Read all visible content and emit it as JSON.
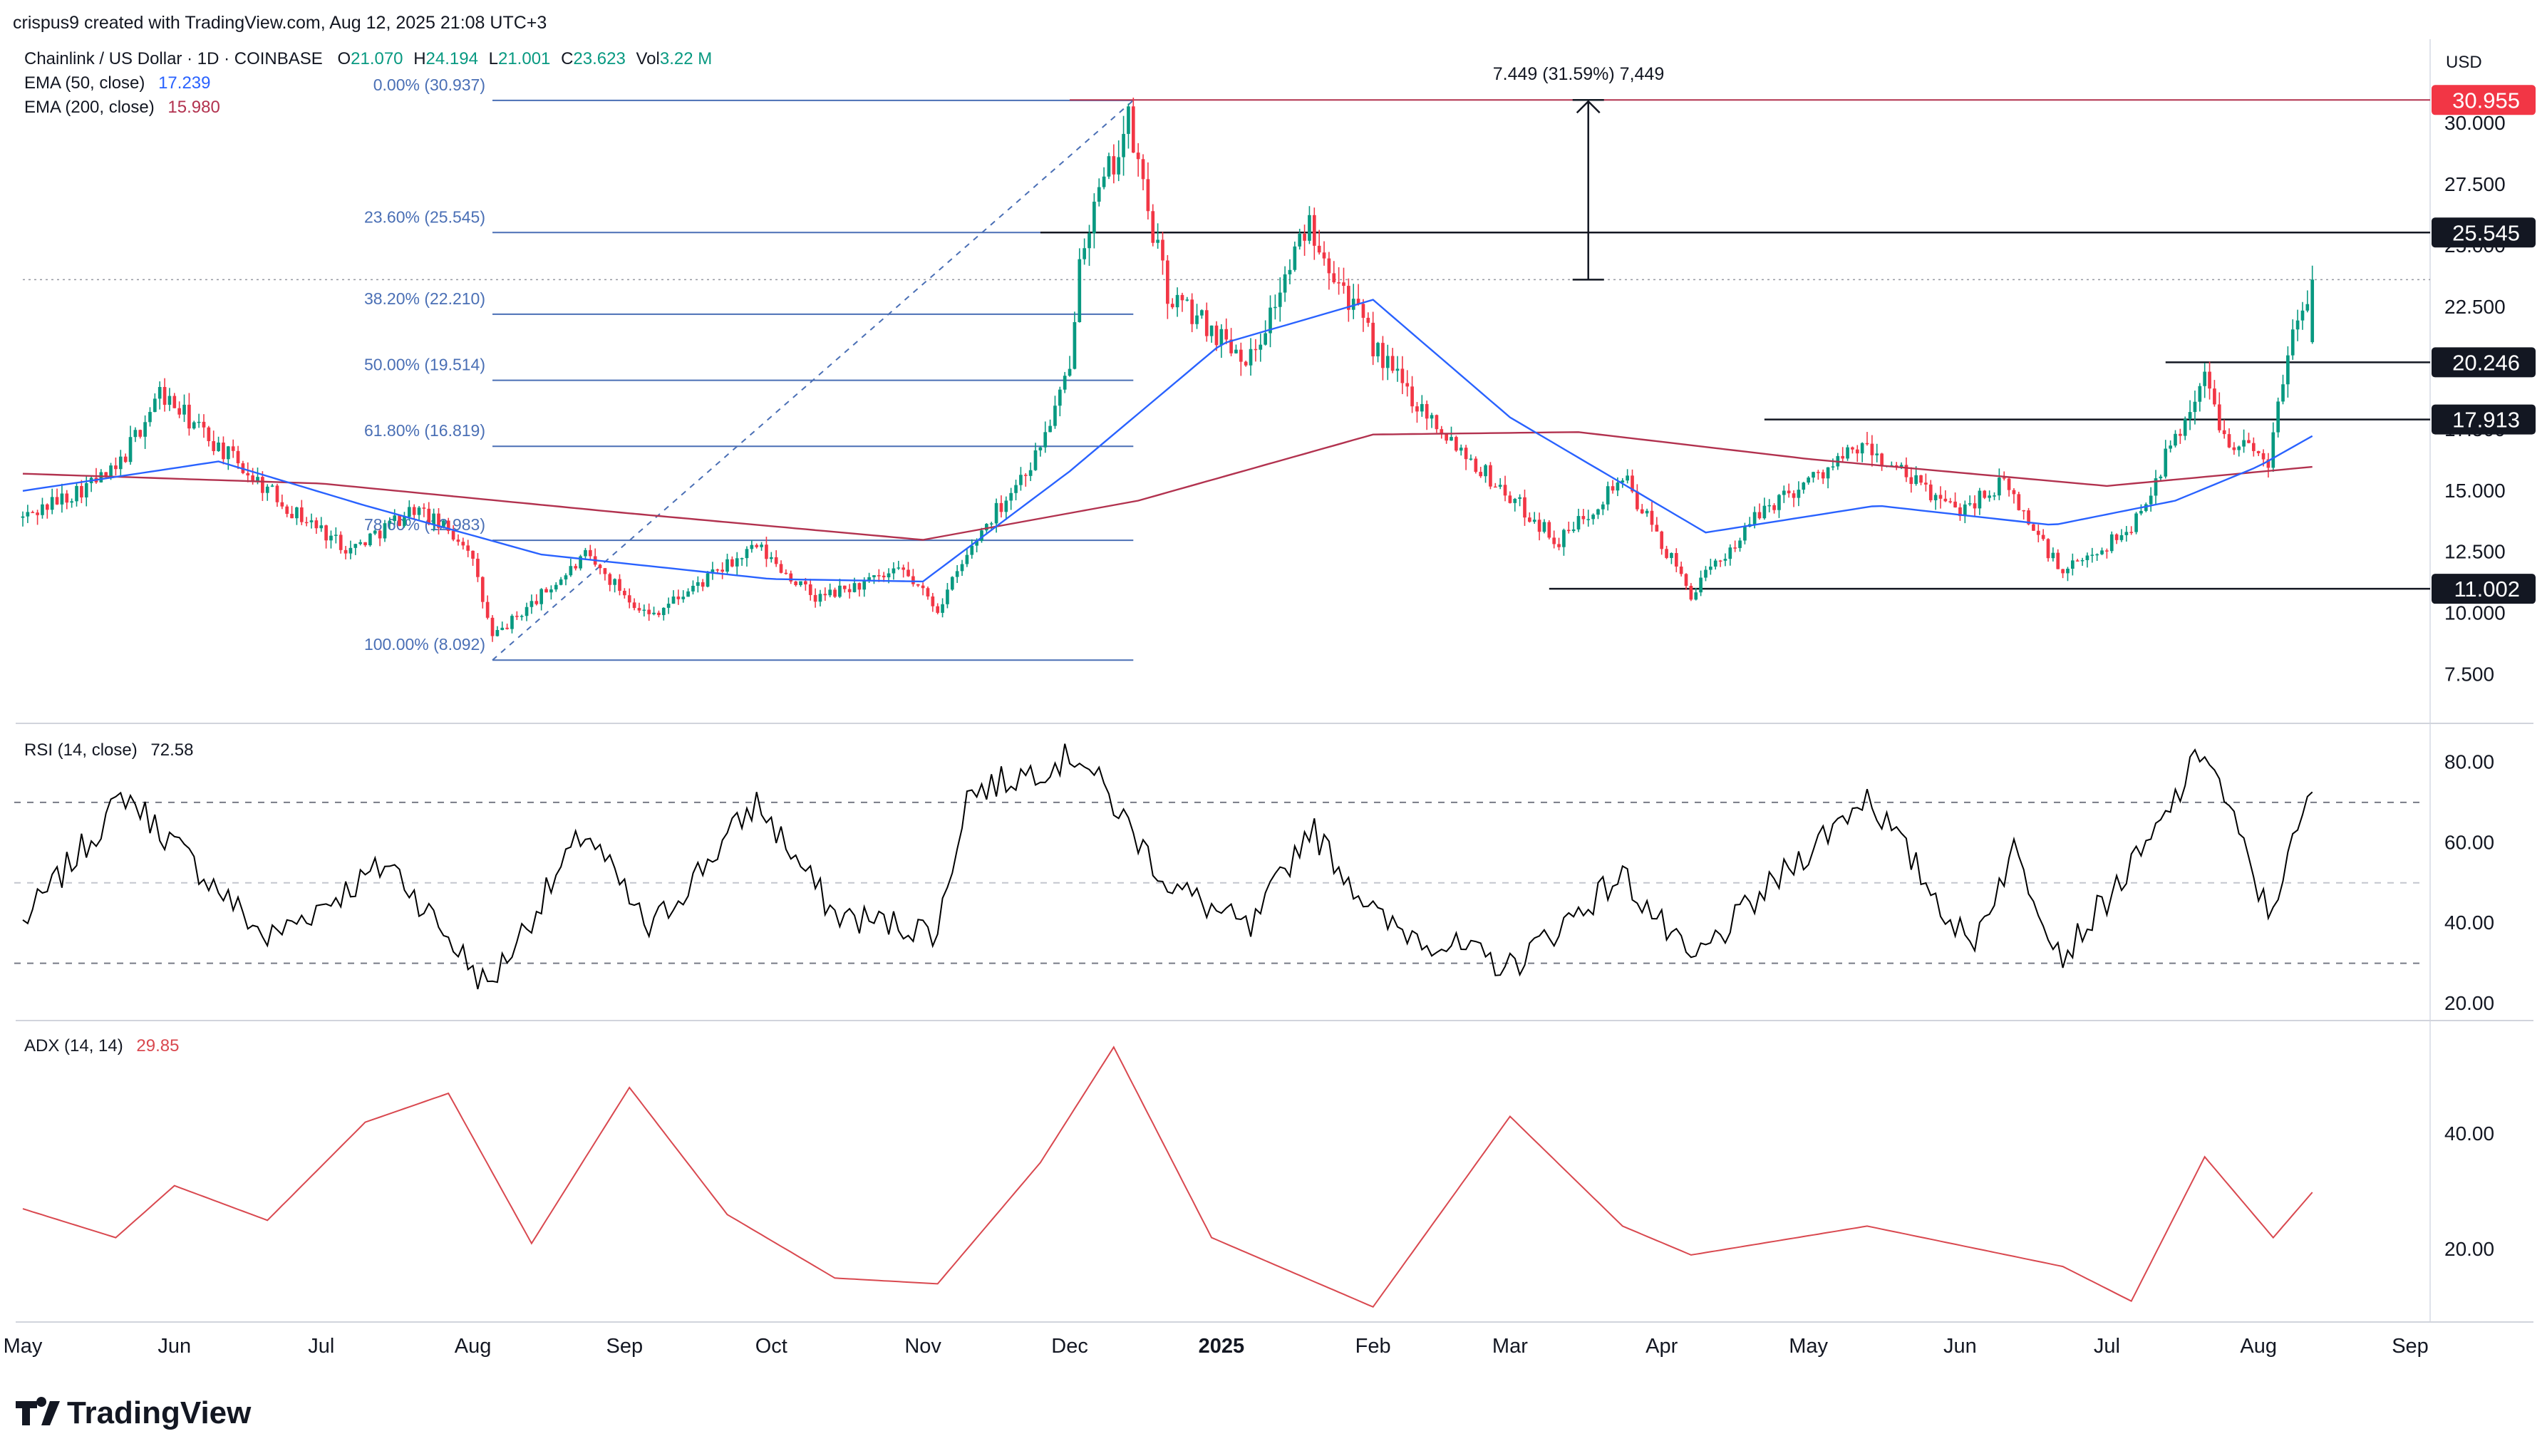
{
  "header": {
    "credit": "crispus9 created with TradingView.com, Aug 12, 2025 21:08 UTC+3",
    "symbol": "Chainlink / US Dollar · 1D · COINBASE",
    "ohlc": [
      {
        "key": "O",
        "value": "21.070"
      },
      {
        "key": "H",
        "value": "24.194"
      },
      {
        "key": "L",
        "value": "21.001"
      },
      {
        "key": "C",
        "value": "23.623"
      },
      {
        "key": "Vol",
        "value": "3.22 M"
      }
    ],
    "ema50": {
      "label": "EMA (50, close)",
      "value": "17.239"
    },
    "ema200": {
      "label": "EMA (200, close)",
      "value": "15.980"
    },
    "currency": "USD",
    "measure": "7.449 (31.59%) 7,449"
  },
  "colors": {
    "up": "#089981",
    "down": "#f23645",
    "ema50": "#2962ff",
    "ema200": "#b2324f",
    "fib": "#4a6fb5",
    "rsi": "#000000",
    "adx": "#d9484f",
    "text": "#131722"
  },
  "fib_levels": [
    {
      "label": "0.00% (30.937)",
      "price": 30.937
    },
    {
      "label": "23.60% (25.545)",
      "price": 25.545
    },
    {
      "label": "38.20% (22.210)",
      "price": 22.21
    },
    {
      "label": "50.00% (19.514)",
      "price": 19.514
    },
    {
      "label": "61.80% (16.819)",
      "price": 16.819
    },
    {
      "label": "78.60% (12.983)",
      "price": 12.983
    },
    {
      "label": "100.00% (8.092)",
      "price": 8.092
    }
  ],
  "price_badges": [
    {
      "label": "30.955",
      "price": 30.955,
      "color": "#f23645"
    },
    {
      "label": "25.545",
      "price": 25.545,
      "color": "#131722"
    },
    {
      "label": "20.246",
      "price": 20.246,
      "color": "#131722"
    },
    {
      "label": "17.913",
      "price": 17.913,
      "color": "#131722"
    },
    {
      "label": "11.002",
      "price": 11.002,
      "color": "#131722"
    }
  ],
  "rsi_panel": {
    "label": "RSI (14, close)",
    "value": "72.58"
  },
  "adx_panel": {
    "label": "ADX (14, 14)",
    "value": "29.85"
  },
  "brand": "TradingView",
  "chart_data": {
    "type": "candlestick",
    "title": "Chainlink / US Dollar · 1D · COINBASE",
    "price_axis": {
      "ticks": [
        "30.000",
        "27.500",
        "25.000",
        "22.500",
        "20.000",
        "17.500",
        "15.000",
        "12.500",
        "10.000",
        "7.500"
      ],
      "range": [
        5.8,
        33.0
      ]
    },
    "x_ticks": [
      {
        "label": "May",
        "date": "2024-05-01"
      },
      {
        "label": "Jun",
        "date": "2024-06-01"
      },
      {
        "label": "Jul",
        "date": "2024-07-01"
      },
      {
        "label": "Aug",
        "date": "2024-08-01"
      },
      {
        "label": "Sep",
        "date": "2024-09-01"
      },
      {
        "label": "Oct",
        "date": "2024-10-01"
      },
      {
        "label": "Nov",
        "date": "2024-11-01"
      },
      {
        "label": "Dec",
        "date": "2024-12-01"
      },
      {
        "label": "2025",
        "date": "2025-01-01"
      },
      {
        "label": "Feb",
        "date": "2025-02-01"
      },
      {
        "label": "Mar",
        "date": "2025-03-01"
      },
      {
        "label": "Apr",
        "date": "2025-04-01"
      },
      {
        "label": "May",
        "date": "2025-05-01"
      },
      {
        "label": "Jun",
        "date": "2025-06-01"
      },
      {
        "label": "Jul",
        "date": "2025-07-01"
      },
      {
        "label": "Aug",
        "date": "2025-08-01"
      },
      {
        "label": "Sep",
        "date": "2025-09-01"
      }
    ],
    "price_keypoints": [
      {
        "date": "2024-05-01",
        "close": 13.9
      },
      {
        "date": "2024-05-20",
        "close": 15.8
      },
      {
        "date": "2024-05-29",
        "close": 19.0
      },
      {
        "date": "2024-06-10",
        "close": 16.8
      },
      {
        "date": "2024-06-25",
        "close": 14.2
      },
      {
        "date": "2024-07-07",
        "close": 12.6
      },
      {
        "date": "2024-07-20",
        "close": 14.3
      },
      {
        "date": "2024-07-31",
        "close": 12.8
      },
      {
        "date": "2024-08-05",
        "close": 9.0
      },
      {
        "date": "2024-08-24",
        "close": 12.3
      },
      {
        "date": "2024-09-06",
        "close": 9.9
      },
      {
        "date": "2024-09-28",
        "close": 12.7
      },
      {
        "date": "2024-10-10",
        "close": 10.6
      },
      {
        "date": "2024-10-28",
        "close": 11.7
      },
      {
        "date": "2024-11-04",
        "close": 10.2
      },
      {
        "date": "2024-11-13",
        "close": 13.4
      },
      {
        "date": "2024-11-24",
        "close": 16.4
      },
      {
        "date": "2024-12-01",
        "close": 19.8
      },
      {
        "date": "2024-12-03",
        "close": 25.0
      },
      {
        "date": "2024-12-13",
        "close": 30.0
      },
      {
        "date": "2024-12-21",
        "close": 23.0
      },
      {
        "date": "2025-01-07",
        "close": 20.4
      },
      {
        "date": "2025-01-19",
        "close": 26.0
      },
      {
        "date": "2025-02-02",
        "close": 20.6
      },
      {
        "date": "2025-02-10",
        "close": 18.6
      },
      {
        "date": "2025-02-25",
        "close": 15.5
      },
      {
        "date": "2025-03-11",
        "close": 12.9
      },
      {
        "date": "2025-03-24",
        "close": 15.6
      },
      {
        "date": "2025-04-07",
        "close": 10.8
      },
      {
        "date": "2025-04-22",
        "close": 14.3
      },
      {
        "date": "2025-05-12",
        "close": 16.8
      },
      {
        "date": "2025-05-31",
        "close": 14.2
      },
      {
        "date": "2025-06-10",
        "close": 15.3
      },
      {
        "date": "2025-06-22",
        "close": 11.6
      },
      {
        "date": "2025-07-06",
        "close": 13.5
      },
      {
        "date": "2025-07-21",
        "close": 19.6
      },
      {
        "date": "2025-07-25",
        "close": 17.3
      },
      {
        "date": "2025-08-03",
        "close": 16.3
      },
      {
        "date": "2025-08-08",
        "close": 21.6
      },
      {
        "date": "2025-08-12",
        "close": 23.623
      }
    ],
    "ema50": [
      {
        "date": "2024-05-01",
        "value": 15.0
      },
      {
        "date": "2024-06-10",
        "value": 16.2
      },
      {
        "date": "2024-07-10",
        "value": 14.4
      },
      {
        "date": "2024-08-15",
        "value": 12.4
      },
      {
        "date": "2024-10-01",
        "value": 11.4
      },
      {
        "date": "2024-11-01",
        "value": 11.3
      },
      {
        "date": "2024-12-01",
        "value": 15.8
      },
      {
        "date": "2025-01-01",
        "value": 21.0
      },
      {
        "date": "2025-02-01",
        "value": 22.8
      },
      {
        "date": "2025-03-01",
        "value": 18.0
      },
      {
        "date": "2025-04-10",
        "value": 13.3
      },
      {
        "date": "2025-05-15",
        "value": 14.4
      },
      {
        "date": "2025-06-20",
        "value": 13.6
      },
      {
        "date": "2025-07-15",
        "value": 14.6
      },
      {
        "date": "2025-08-01",
        "value": 16.0
      },
      {
        "date": "2025-08-12",
        "value": 17.239
      }
    ],
    "ema200": [
      {
        "date": "2024-05-01",
        "value": 15.7
      },
      {
        "date": "2024-07-01",
        "value": 15.3
      },
      {
        "date": "2024-09-01",
        "value": 14.1
      },
      {
        "date": "2024-11-01",
        "value": 13.0
      },
      {
        "date": "2024-12-15",
        "value": 14.6
      },
      {
        "date": "2025-02-01",
        "value": 17.3
      },
      {
        "date": "2025-03-15",
        "value": 17.4
      },
      {
        "date": "2025-05-01",
        "value": 16.3
      },
      {
        "date": "2025-07-01",
        "value": 15.2
      },
      {
        "date": "2025-08-12",
        "value": 15.98
      }
    ],
    "rsi": {
      "range": [
        17,
        87
      ],
      "ticks": [
        "80.00",
        "60.00",
        "40.00",
        "20.00"
      ],
      "bands": [
        30,
        50,
        70
      ],
      "keypoints": [
        {
          "date": "2024-05-01",
          "value": 40
        },
        {
          "date": "2024-05-22",
          "value": 72
        },
        {
          "date": "2024-06-20",
          "value": 36
        },
        {
          "date": "2024-07-15",
          "value": 55
        },
        {
          "date": "2024-08-04",
          "value": 24
        },
        {
          "date": "2024-08-24",
          "value": 63
        },
        {
          "date": "2024-09-06",
          "value": 38
        },
        {
          "date": "2024-09-28",
          "value": 70
        },
        {
          "date": "2024-10-14",
          "value": 42
        },
        {
          "date": "2024-11-04",
          "value": 38
        },
        {
          "date": "2024-11-10",
          "value": 72
        },
        {
          "date": "2024-12-03",
          "value": 82
        },
        {
          "date": "2024-12-21",
          "value": 50
        },
        {
          "date": "2025-01-07",
          "value": 38
        },
        {
          "date": "2025-01-19",
          "value": 64
        },
        {
          "date": "2025-02-03",
          "value": 40
        },
        {
          "date": "2025-03-01",
          "value": 29
        },
        {
          "date": "2025-03-24",
          "value": 52
        },
        {
          "date": "2025-04-07",
          "value": 30
        },
        {
          "date": "2025-05-06",
          "value": 64
        },
        {
          "date": "2025-05-13",
          "value": 72
        },
        {
          "date": "2025-06-03",
          "value": 34
        },
        {
          "date": "2025-06-12",
          "value": 58
        },
        {
          "date": "2025-06-22",
          "value": 32
        },
        {
          "date": "2025-07-10",
          "value": 60
        },
        {
          "date": "2025-07-21",
          "value": 84
        },
        {
          "date": "2025-08-03",
          "value": 42
        },
        {
          "date": "2025-08-12",
          "value": 72.58
        }
      ]
    },
    "adx": {
      "range": [
        8,
        58
      ],
      "ticks": [
        "40.00",
        "20.00"
      ],
      "keypoints": [
        {
          "date": "2024-05-01",
          "value": 27
        },
        {
          "date": "2024-05-20",
          "value": 22
        },
        {
          "date": "2024-06-01",
          "value": 31
        },
        {
          "date": "2024-06-20",
          "value": 25
        },
        {
          "date": "2024-07-10",
          "value": 42
        },
        {
          "date": "2024-07-27",
          "value": 47
        },
        {
          "date": "2024-08-13",
          "value": 21
        },
        {
          "date": "2024-09-02",
          "value": 48
        },
        {
          "date": "2024-09-22",
          "value": 26
        },
        {
          "date": "2024-10-14",
          "value": 15
        },
        {
          "date": "2024-11-04",
          "value": 14
        },
        {
          "date": "2024-11-25",
          "value": 35
        },
        {
          "date": "2024-12-10",
          "value": 55
        },
        {
          "date": "2024-12-30",
          "value": 22
        },
        {
          "date": "2025-02-01",
          "value": 10
        },
        {
          "date": "2025-02-18",
          "value": 30
        },
        {
          "date": "2025-03-01",
          "value": 43
        },
        {
          "date": "2025-03-24",
          "value": 24
        },
        {
          "date": "2025-04-07",
          "value": 19
        },
        {
          "date": "2025-05-13",
          "value": 24
        },
        {
          "date": "2025-06-22",
          "value": 17
        },
        {
          "date": "2025-07-06",
          "value": 11
        },
        {
          "date": "2025-07-21",
          "value": 36
        },
        {
          "date": "2025-08-04",
          "value": 22
        },
        {
          "date": "2025-08-12",
          "value": 29.85
        }
      ]
    }
  }
}
